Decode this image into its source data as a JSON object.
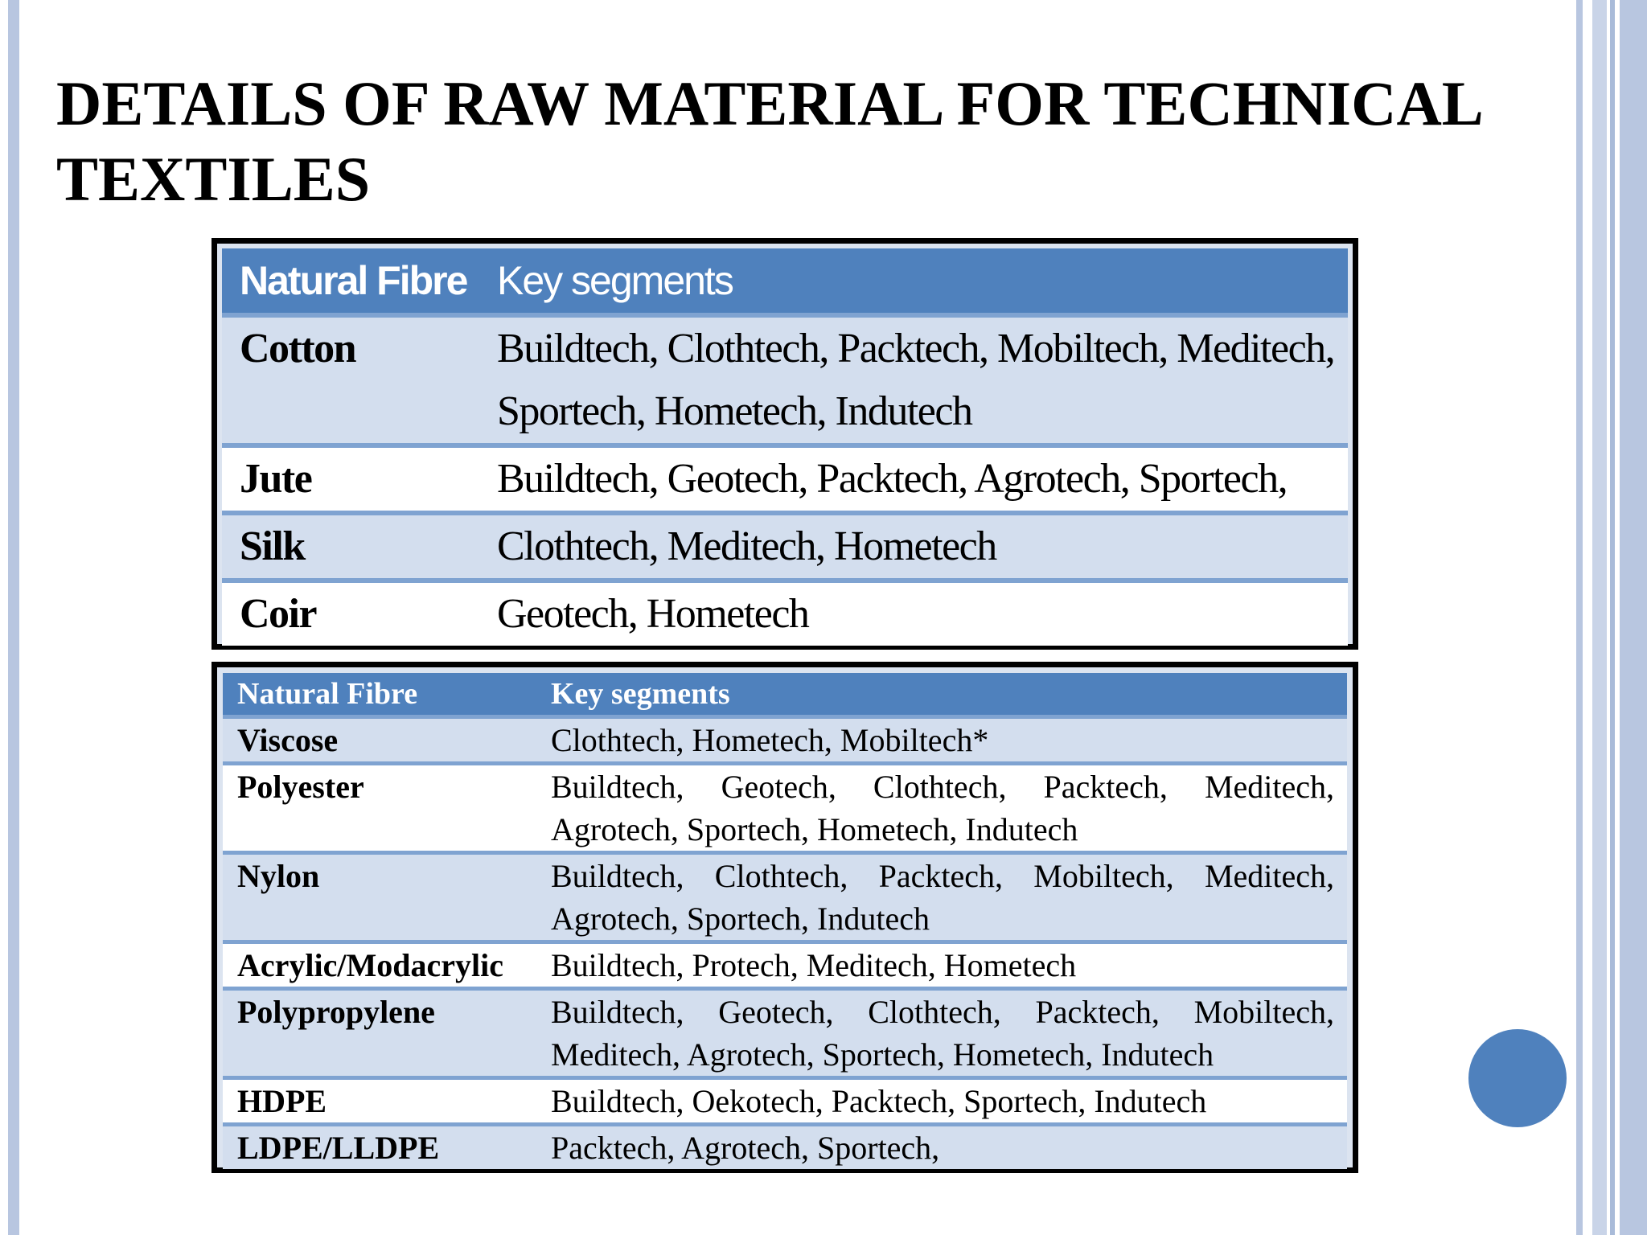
{
  "slide": {
    "title": "DETAILS OF RAW MATERIAL FOR TECHNICAL\nTEXTILES"
  },
  "table_natural": {
    "headers": [
      "Natural Fibre",
      "Key segments"
    ],
    "rows": [
      {
        "fibre": "Cotton",
        "segments": "Buildtech, Clothtech, Packtech, Mobiltech, Meditech, Sportech, Hometech, Indutech"
      },
      {
        "fibre": "Jute",
        "segments": "Buildtech, Geotech, Packtech, Agrotech, Sportech,"
      },
      {
        "fibre": "Silk",
        "segments": "Clothtech, Meditech, Hometech"
      },
      {
        "fibre": "Coir",
        "segments": "Geotech, Hometech"
      }
    ]
  },
  "table_synthetic": {
    "headers": [
      "Natural Fibre",
      "Key segments"
    ],
    "rows": [
      {
        "fibre": "Viscose",
        "segments": "Clothtech, Hometech, Mobiltech*"
      },
      {
        "fibre": "Polyester",
        "segments": "Buildtech, Geotech, Clothtech, Packtech, Meditech, Agrotech, Sportech, Hometech, Indutech"
      },
      {
        "fibre": "Nylon",
        "segments": "Buildtech, Clothtech, Packtech, Mobiltech, Meditech, Agrotech, Sportech, Indutech"
      },
      {
        "fibre": "Acrylic/Modacrylic",
        "segments": "Buildtech, Protech, Meditech, Hometech"
      },
      {
        "fibre": "Polypropylene",
        "segments": "Buildtech, Geotech, Clothtech, Packtech, Mobiltech, Meditech, Agrotech, Sportech, Hometech, Indutech"
      },
      {
        "fibre": "HDPE",
        "segments": "Buildtech, Oekotech, Packtech, Sportech, Indutech"
      },
      {
        "fibre": "LDPE/LLDPE",
        "segments": "Packtech, Agrotech, Sportech,"
      }
    ]
  },
  "colors": {
    "header_blue": "#4f81bd",
    "row_shade": "#d3deee",
    "accent_bar": "#b8c6e0"
  }
}
